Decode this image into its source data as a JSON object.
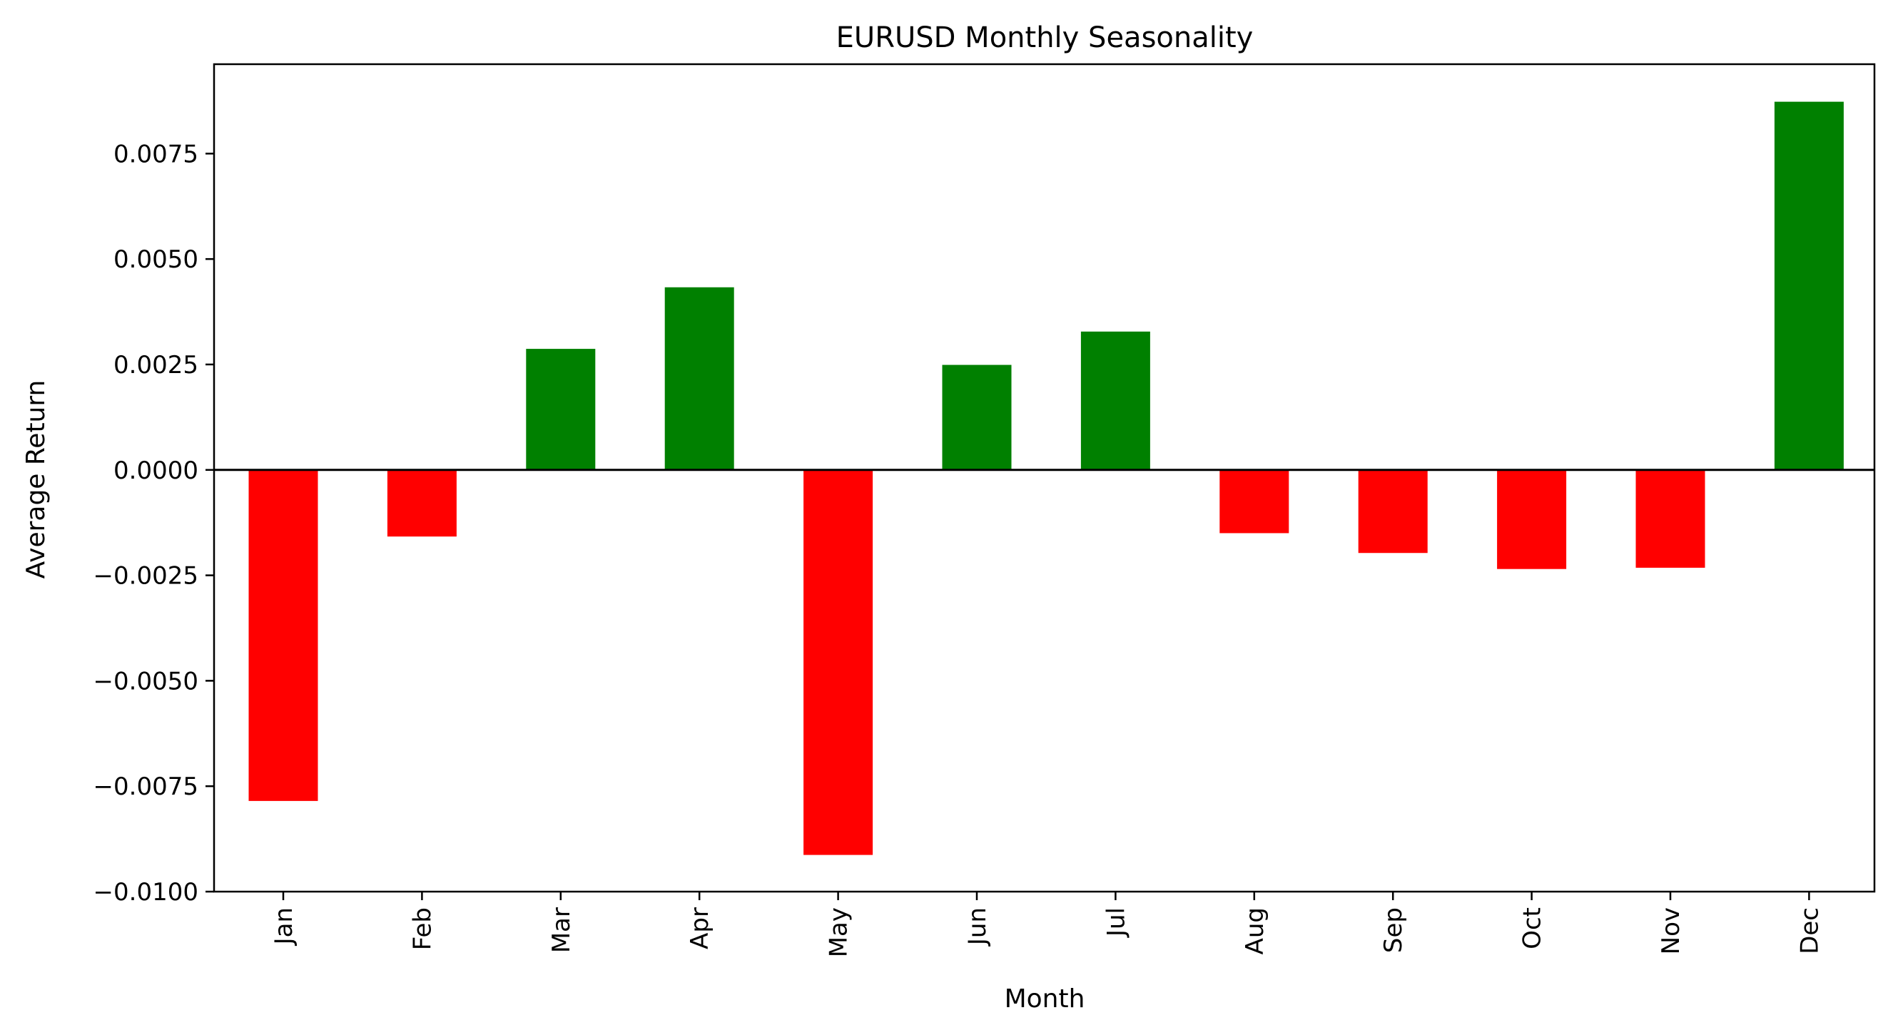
{
  "chart_data": {
    "type": "bar",
    "title": "EURUSD Monthly Seasonality",
    "xlabel": "Month",
    "ylabel": "Average Return",
    "categories": [
      "Jan",
      "Feb",
      "Mar",
      "Apr",
      "May",
      "Jun",
      "Jul",
      "Aug",
      "Sep",
      "Oct",
      "Nov",
      "Dec"
    ],
    "values": [
      -0.00785,
      -0.00158,
      0.00287,
      0.00433,
      -0.00913,
      0.00249,
      0.00328,
      -0.0015,
      -0.00197,
      -0.00235,
      -0.00232,
      0.00873
    ],
    "yticks": [
      0.0075,
      0.005,
      0.0025,
      0.0,
      -0.0025,
      -0.005,
      -0.0075,
      -0.01
    ],
    "ytick_labels": [
      "0.0075",
      "0.0050",
      "0.0025",
      "0.0000",
      "−0.0025",
      "−0.0050",
      "−0.0075",
      "−0.0100"
    ],
    "ylim": [
      -0.01,
      0.00962
    ],
    "grid": false,
    "legend": "none",
    "colors": {
      "positive": "#008000",
      "negative": "#ff0000"
    },
    "zero_line": true
  }
}
